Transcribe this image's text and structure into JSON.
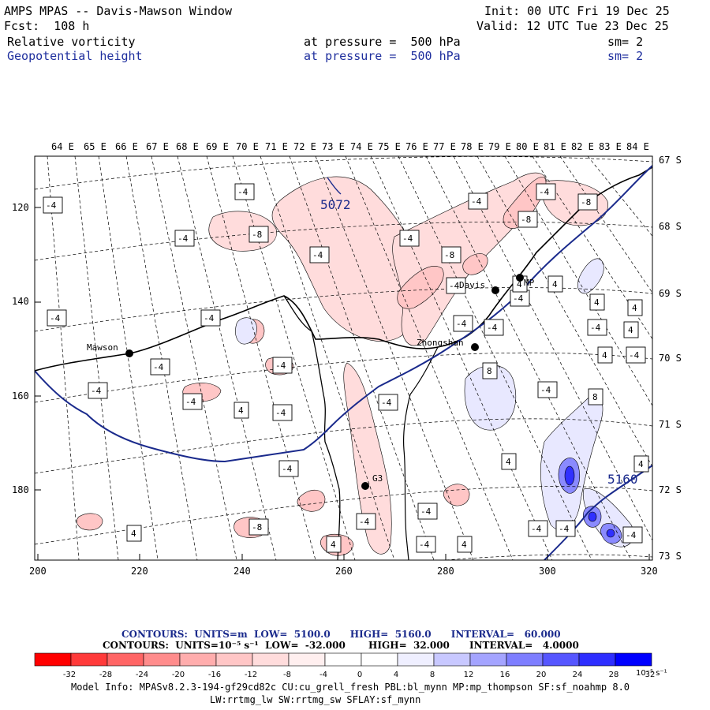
{
  "header": {
    "title": "AMPS MPAS -- Davis-Mawson Window",
    "fcst": "Fcst:  108 h",
    "init": "Init: 00 UTC Fri 19 Dec 25",
    "valid": "Valid: 12 UTC Tue 23 Dec 25",
    "field1": {
      "name": "Relative vorticity",
      "pressure": "at pressure =  500 hPa",
      "sm": "sm= 2"
    },
    "field2": {
      "name": "Geopotential height",
      "pressure": "at pressure =  500 hPa",
      "sm": "sm= 2"
    }
  },
  "top_axis_labels": [
    "64 E",
    "65 E",
    "66 E",
    "67 E",
    "68 E",
    "69 E",
    "70 E",
    "71 E",
    "72 E",
    "73 E",
    "74 E",
    "75 E",
    "76 E",
    "77 E",
    "78 E",
    "79 E",
    "80 E",
    "81 E",
    "82 E",
    "83 E",
    "84 E"
  ],
  "right_axis_labels": [
    "67 S",
    "68 S",
    "69 S",
    "70 S",
    "71 S",
    "72 S",
    "73 S"
  ],
  "left_axis_labels": [
    "120",
    "140",
    "160",
    "180"
  ],
  "bottom_axis_labels": [
    "200",
    "220",
    "240",
    "260",
    "280",
    "300",
    "320"
  ],
  "stations": [
    {
      "name": "Mawson"
    },
    {
      "name": "Davis"
    },
    {
      "name": "Zhongshan"
    },
    {
      "name": "MP"
    },
    {
      "name": "G3"
    }
  ],
  "height_labels": [
    "5072",
    "5160"
  ],
  "vorticity_labels": [
    "-4",
    "-4",
    "-4",
    "-4",
    "-4",
    "-8",
    "-4",
    "-4",
    "-8",
    "-4",
    "-8",
    "-4",
    "4",
    "-4",
    "-4",
    "-4",
    "-4",
    "-4",
    "-4",
    "-4",
    "4",
    "-4",
    "4",
    "-4",
    "4",
    "-4",
    "-4",
    "4",
    "8",
    "-4",
    "4",
    "8",
    "4",
    "4",
    "-4",
    "4",
    "-8",
    "-4",
    "-4",
    "-4",
    "4",
    "-8",
    "4",
    "-4",
    "-4",
    "-4",
    "4",
    "-4"
  ],
  "contour_info": {
    "line1": "CONTOURS:  UNITS=m  LOW=  5100.0      HIGH=  5160.0      INTERVAL=   60.000",
    "line2": "CONTOURS:  UNITS=10⁻⁵ s⁻¹  LOW=  -32.000       HIGH=  32.000      INTERVAL=   4.0000"
  },
  "legend": {
    "ticks": [
      "-32",
      "-28",
      "-24",
      "-20",
      "-16",
      "-12",
      "-8",
      "-4",
      "0",
      "4",
      "8",
      "12",
      "16",
      "20",
      "24",
      "28",
      "32"
    ],
    "unit": "10⁻⁵ s⁻¹",
    "colors": [
      "#ff0000",
      "#ff3a3a",
      "#ff6565",
      "#ff8c8c",
      "#ffadad",
      "#ffc6c6",
      "#ffdcdc",
      "#ffefef",
      "#ffffff",
      "#ffffff",
      "#efefff",
      "#c8c8ff",
      "#a4a4ff",
      "#7e7eff",
      "#5656ff",
      "#2e2eff",
      "#0000ff"
    ]
  },
  "footer": {
    "line1": "Model Info: MPASv8.2.3-194-gf29cd82c CU:cu_grell_fresh PBL:bl_mynn MP:mp_thompson SF:sf_noahmp 8.0",
    "line2": "LW:rrtmg_lw SW:rrtmg_sw SFLAY:sf_mynn"
  }
}
